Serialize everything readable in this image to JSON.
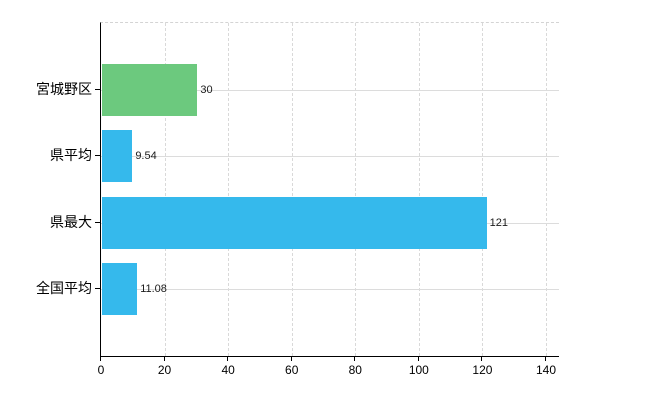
{
  "chart_data": {
    "type": "bar",
    "orientation": "horizontal",
    "title": "",
    "xlabel": "",
    "ylabel": "",
    "categories": [
      "宮城野区",
      "県平均",
      "県最大",
      "全国平均"
    ],
    "values": [
      30,
      9.54,
      121,
      11.08
    ],
    "value_labels": [
      "30",
      "9.54",
      "121",
      "11.08"
    ],
    "bar_colors": [
      "#6CC97E",
      "#35B9EC",
      "#35B9EC",
      "#35B9EC"
    ],
    "xticks": [
      0,
      20,
      40,
      60,
      80,
      100,
      120,
      140
    ],
    "xlim": [
      0,
      140
    ],
    "grid": true,
    "legend": null
  },
  "colors": {
    "bar_green": "#6CC97E",
    "bar_blue": "#35B9EC",
    "gridline": "#dcdcdc",
    "axis": "#000000",
    "text": "#000000",
    "background": "#ffffff"
  }
}
